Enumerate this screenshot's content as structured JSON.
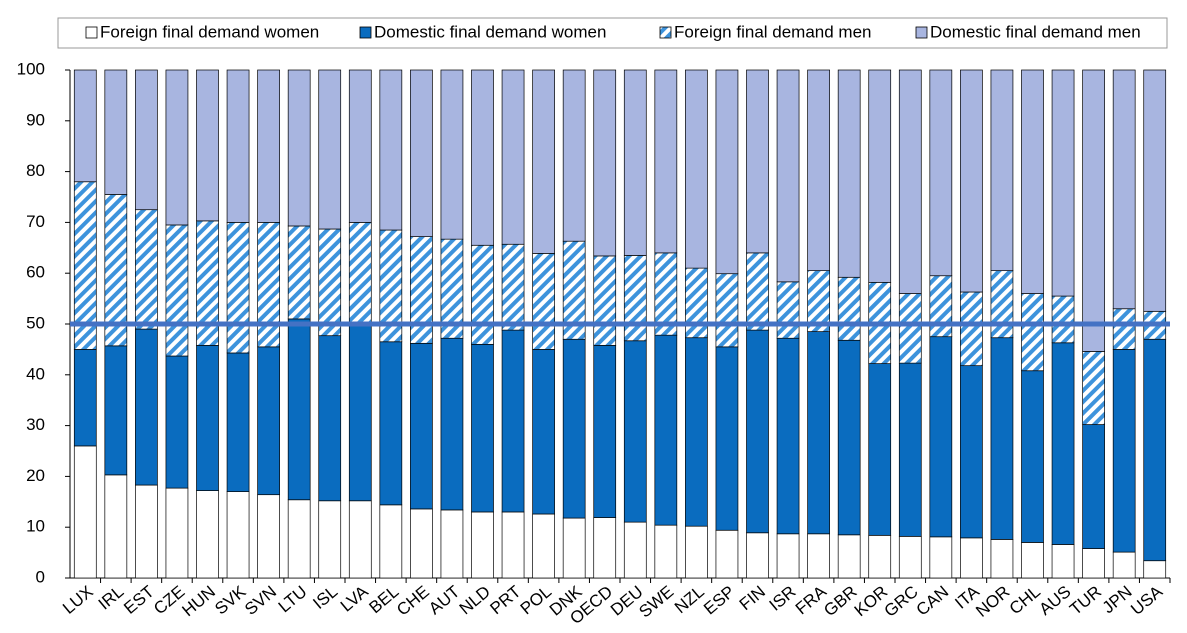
{
  "chart_data": {
    "type": "stacked_bar",
    "categories": [
      "LUX",
      "IRL",
      "EST",
      "CZE",
      "HUN",
      "SVK",
      "SVN",
      "LTU",
      "ISL",
      "LVA",
      "BEL",
      "CHE",
      "AUT",
      "NLD",
      "PRT",
      "POL",
      "DNK",
      "OECD",
      "DEU",
      "SWE",
      "NZL",
      "ESP",
      "FIN",
      "ISR",
      "FRA",
      "GBR",
      "KOR",
      "GRC",
      "CAN",
      "ITA",
      "NOR",
      "CHL",
      "AUS",
      "TUR",
      "JPN",
      "USA"
    ],
    "series": [
      {
        "name": "Foreign final demand women",
        "color": "#ffffff",
        "values": [
          26,
          20.3,
          18.3,
          17.7,
          17.2,
          17,
          16.4,
          15.4,
          15.2,
          15.2,
          14.4,
          13.6,
          13.4,
          13,
          13,
          12.6,
          11.8,
          11.9,
          11,
          10.4,
          10.2,
          9.4,
          8.9,
          8.7,
          8.7,
          8.5,
          8.4,
          8.2,
          8.1,
          7.9,
          7.6,
          7,
          6.6,
          5.8,
          5.1,
          3.4
        ]
      },
      {
        "name": "Domestic final demand women",
        "color": "#0a6cbf",
        "values": [
          19,
          25.4,
          30.7,
          26,
          28.6,
          27.3,
          29.1,
          35.6,
          32.5,
          34.8,
          32.1,
          32.6,
          33.8,
          33,
          35.8,
          32.4,
          35.2,
          33.9,
          35.7,
          37.4,
          37.1,
          36.1,
          39.9,
          38.5,
          39.8,
          38.3,
          33.8,
          34.1,
          39.4,
          33.9,
          39.7,
          33.8,
          39.7,
          24.4,
          39.9,
          43.6
        ]
      },
      {
        "name": "Foreign final demand men",
        "color": "#3d93dc",
        "pattern": "hatch",
        "values": [
          33,
          29.8,
          23.5,
          25.8,
          24.5,
          25.7,
          24.5,
          18.3,
          21,
          20,
          22,
          21,
          19.5,
          19.5,
          16.9,
          18.9,
          19.3,
          17.6,
          16.8,
          16.2,
          13.7,
          14.4,
          15.2,
          11.1,
          12,
          12.4,
          16,
          13.7,
          12,
          14.5,
          13.2,
          15.2,
          9.2,
          14.4,
          8,
          5.5
        ]
      },
      {
        "name": "Domestic final demand men",
        "color": "#a8b5e0",
        "values": [
          22,
          24.5,
          27.5,
          30.5,
          29.7,
          30,
          30,
          30.7,
          31.3,
          30,
          31.5,
          32.8,
          33.3,
          34.5,
          34.3,
          36.1,
          33.7,
          36.6,
          36.5,
          36,
          39,
          40.1,
          36,
          41.7,
          39.5,
          40.8,
          41.8,
          44,
          40.5,
          43.7,
          39.5,
          44,
          44.5,
          55.4,
          47,
          47.5
        ]
      }
    ],
    "reference_line": 50,
    "reference_color": "#4472c4",
    "ylim": [
      0,
      100
    ],
    "yticks": [
      0,
      10,
      20,
      30,
      40,
      50,
      60,
      70,
      80,
      90,
      100
    ]
  }
}
